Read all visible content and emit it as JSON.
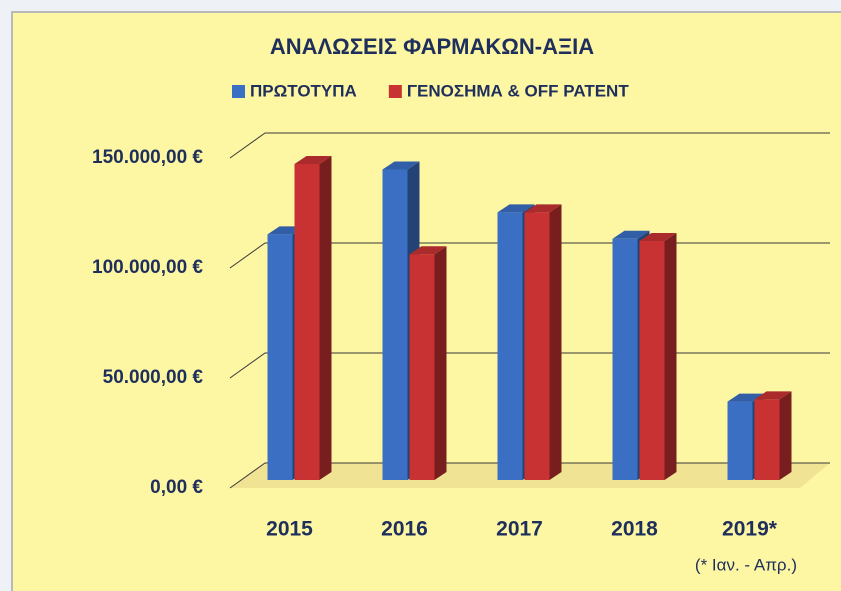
{
  "chart_data": {
    "type": "bar3d",
    "title": "ΑΝΑΛΩΣΕΙΣ ΦΑΡΜΑΚΩΝ-ΑΞΙΑ",
    "categories": [
      "2015",
      "2016",
      "2017",
      "2018",
      "2019*"
    ],
    "series": [
      {
        "name": "ΠΡΩΤΟΤΥΠΑ",
        "color": "#3a6fc4",
        "values": [
          118000,
          147500,
          128000,
          116000,
          42000
        ]
      },
      {
        "name": "ΓΕΝΟΣΗΜΑ & OFF PATENT",
        "color": "#c83232",
        "values": [
          150000,
          109000,
          128000,
          115000,
          43000
        ]
      }
    ],
    "ylim": [
      0,
      150000
    ],
    "yticks": [
      {
        "value": 0,
        "label": "0,00 €"
      },
      {
        "value": 50000,
        "label": "50.000,00 €"
      },
      {
        "value": 100000,
        "label": "100.000,00 €"
      },
      {
        "value": 150000,
        "label": "150.000,00 €"
      }
    ],
    "grid": true,
    "legend": "top",
    "annotation": "(* Ιαν. - Απρ.)"
  }
}
